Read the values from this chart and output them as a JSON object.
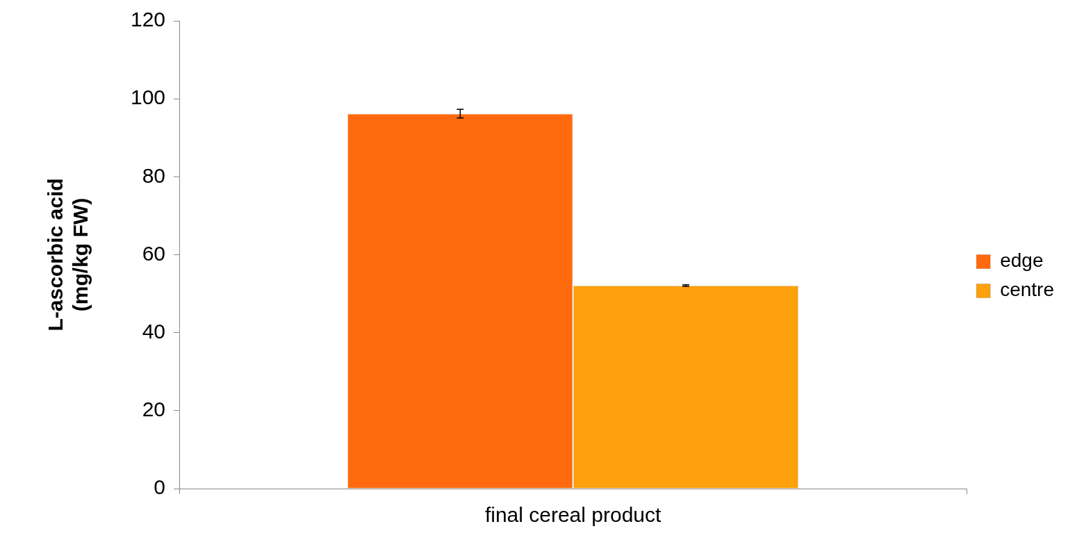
{
  "chart_data": {
    "type": "bar",
    "ylabel": "L-ascorbic acid\n(mg/kg FW)",
    "categories": [
      "final cereal product"
    ],
    "series": [
      {
        "name": "edge",
        "color": "#ff6a0e",
        "values": [
          96.2
        ],
        "errors": [
          1.1
        ]
      },
      {
        "name": "centre",
        "color": "#ffa10c",
        "values": [
          52.1
        ],
        "errors": [
          0.2
        ]
      }
    ],
    "ylim": [
      0,
      120
    ],
    "yticks": [
      0,
      20,
      40,
      60,
      80,
      100,
      120
    ],
    "grid": false,
    "legend": "right"
  }
}
